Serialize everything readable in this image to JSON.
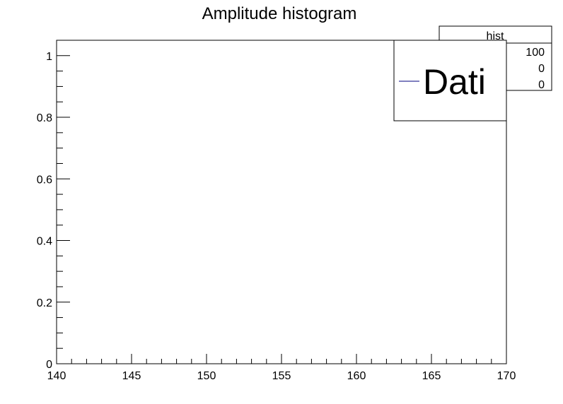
{
  "chart_data": {
    "type": "bar",
    "title": "Amplitude histogram",
    "xlabel": "",
    "ylabel": "",
    "xlim": [
      140,
      170
    ],
    "ylim": [
      0,
      1.05
    ],
    "x_major_ticks": [
      140,
      145,
      150,
      155,
      160,
      165,
      170
    ],
    "x_tick_labels": [
      "140",
      "145",
      "150",
      "155",
      "160",
      "165",
      "170"
    ],
    "x_minor_step": 1,
    "y_major_ticks": [
      0,
      0.2,
      0.4,
      0.6,
      0.8,
      1
    ],
    "y_tick_labels": [
      "0",
      "0.2",
      "0.4",
      "0.6",
      "0.8",
      "1"
    ],
    "y_minor_step": 0.05,
    "grid": false,
    "values": [],
    "legend": {
      "placement": "top-right",
      "entries": [
        {
          "label": "Dati",
          "color": "#00007f"
        }
      ]
    },
    "stats_box": {
      "title": "hist",
      "values": [
        "100",
        "0",
        "0"
      ]
    }
  }
}
